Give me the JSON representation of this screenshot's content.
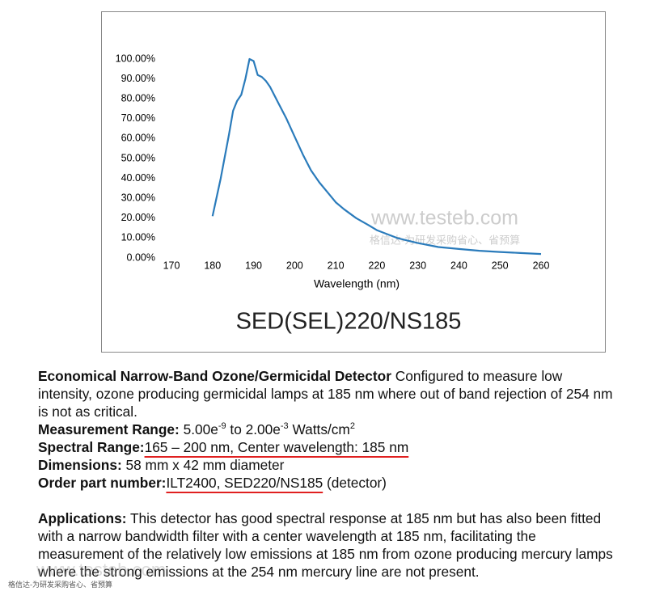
{
  "chart_data": {
    "type": "line",
    "title": "SED(SEL)220/NS185",
    "x_label": "Wavelength (nm)",
    "color": "#2a7bbb",
    "x": [
      180,
      182,
      184,
      185,
      186,
      187,
      188,
      189,
      190,
      191,
      192,
      193,
      194,
      196,
      198,
      200,
      202,
      204,
      206,
      208,
      210,
      212,
      215,
      218,
      220,
      225,
      230,
      235,
      240,
      245,
      250,
      255,
      260
    ],
    "values": [
      21,
      40,
      62,
      74,
      79,
      82,
      90,
      100,
      99,
      92,
      91,
      89,
      86,
      78,
      70,
      61,
      52,
      44,
      38,
      33,
      28,
      24.5,
      20,
      16.5,
      14,
      10,
      7.5,
      5.5,
      4.5,
      3.6,
      3,
      2.5,
      2
    ],
    "xlim": [
      170,
      260
    ],
    "xticks": [
      170,
      180,
      190,
      200,
      210,
      220,
      230,
      240,
      250,
      260
    ],
    "ylim": [
      0,
      100
    ],
    "yticks": [
      {
        "value": 0,
        "label": "0.00%"
      },
      {
        "value": 10,
        "label": "10.00%"
      },
      {
        "value": 20,
        "label": "20.00%"
      },
      {
        "value": 30,
        "label": "30.00%"
      },
      {
        "value": 40,
        "label": "40.00%"
      },
      {
        "value": 50,
        "label": "50.00%"
      },
      {
        "value": 60,
        "label": "60.00%"
      },
      {
        "value": 70,
        "label": "70.00%"
      },
      {
        "value": 80,
        "label": "80.00%"
      },
      {
        "value": 90,
        "label": "90.00%"
      },
      {
        "value": 100,
        "label": "100.00%"
      }
    ],
    "grid": false,
    "watermark": "www.testeb.com",
    "watermark_cn": "格信达-为研发采购省心、省预算"
  },
  "document": {
    "intro_heading": "Economical Narrow-Band Ozone/Germicidal Detector",
    "intro_text": " Configured to measure low intensity, ozone producing germicidal lamps at 185 nm where out of band rejection of 254 nm is not as critical.",
    "measurement_label": "Measurement Range:",
    "measurement_parts": [
      " 5.00e",
      "-9",
      " to 2.00e",
      "-3",
      " Watts/cm",
      "2"
    ],
    "spectral_label": "Spectral Range:",
    "spectral_value": "165 – 200 nm, Center wavelength: 185 nm",
    "dimensions_label": "Dimensions:",
    "dimensions_value": " 58 mm x 42 mm diameter",
    "order_label": "Order part number:",
    "order_value": "ILT2400, SED220/NS185",
    "order_suffix": " (detector)",
    "applications_label": "Applications:",
    "applications_text": " This detector has good spectral response at 185 nm but has also been fitted with a narrow bandwidth filter with a center wavelength at 185 nm, facilitating the measurement of the relatively low emissions at 185 nm from ozone producing mercury lamps where the strong emissions at the 254 nm mercury line are not present.",
    "footer_watermark": "www.testeb.com",
    "footer_watermark_cn": "格信达-为研发采购省心、省预算"
  }
}
